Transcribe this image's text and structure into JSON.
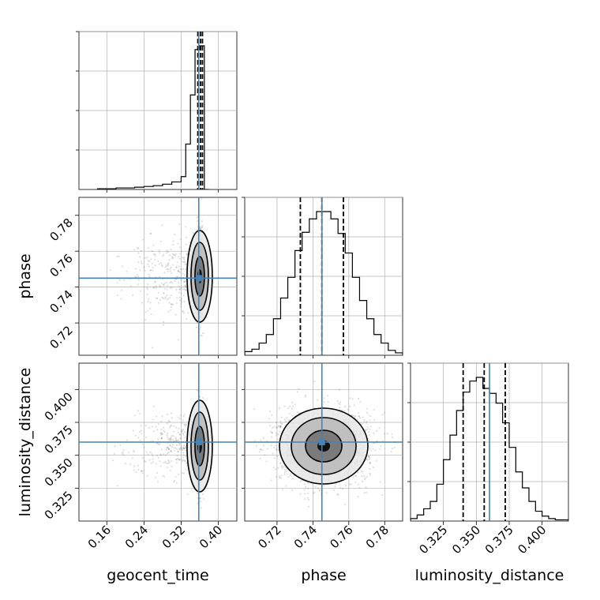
{
  "colors": {
    "truth": "#4682b4",
    "grid": "#b0b0b0",
    "line": "#000000",
    "point": "#000000"
  },
  "chart_data": {
    "type": "corner",
    "parameters": [
      "geocent_time",
      "phase",
      "luminosity_distance"
    ],
    "axis_labels": {
      "x": [
        "geocent_time",
        "phase",
        "luminosity_distance"
      ],
      "y": [
        "phase",
        "luminosity_distance"
      ]
    },
    "ranges": {
      "geocent_time": [
        0.1,
        0.44
      ],
      "phase": [
        0.702,
        0.79
      ],
      "luminosity_distance": [
        0.3,
        0.42
      ]
    },
    "ticks": {
      "geocent_time": {
        "values": [
          0.16,
          0.24,
          0.32,
          0.4
        ],
        "labels": [
          "0.16",
          "0.24",
          "0.32",
          "0.40"
        ]
      },
      "phase": {
        "values": [
          0.72,
          0.74,
          0.76,
          0.78
        ],
        "labels": [
          "0.72",
          "0.74",
          "0.76",
          "0.78"
        ]
      },
      "luminosity_distance": {
        "values": [
          0.325,
          0.35,
          0.375,
          0.4
        ],
        "labels": [
          "0.325",
          "0.350",
          "0.375",
          "0.400"
        ]
      }
    },
    "truths": {
      "geocent_time": 0.358,
      "phase": 0.745,
      "luminosity_distance": 0.36
    },
    "quantiles": {
      "geocent_time": [
        0.356,
        0.362,
        0.366
      ],
      "phase": [
        0.733,
        0.745,
        0.757
      ],
      "luminosity_distance": [
        0.34,
        0.356,
        0.372
      ]
    },
    "histograms": {
      "geocent_time": {
        "edges": [
          0.14,
          0.16,
          0.18,
          0.2,
          0.22,
          0.24,
          0.26,
          0.28,
          0.3,
          0.32,
          0.33,
          0.34,
          0.35,
          0.36,
          0.37,
          0.38
        ],
        "counts": [
          1,
          1,
          2,
          2,
          3,
          4,
          5,
          7,
          10,
          17,
          60,
          125,
          185,
          190,
          0
        ]
      },
      "phase": {
        "edges": [
          0.702,
          0.706,
          0.71,
          0.714,
          0.718,
          0.722,
          0.726,
          0.73,
          0.734,
          0.738,
          0.742,
          0.746,
          0.75,
          0.754,
          0.758,
          0.762,
          0.766,
          0.77,
          0.774,
          0.778,
          0.782,
          0.786,
          0.79
        ],
        "counts": [
          3,
          5,
          10,
          17,
          30,
          47,
          64,
          86,
          101,
          112,
          118,
          118,
          112,
          100,
          84,
          64,
          45,
          30,
          17,
          10,
          4,
          2
        ]
      },
      "luminosity_distance": {
        "edges": [
          0.3,
          0.305,
          0.31,
          0.315,
          0.32,
          0.325,
          0.33,
          0.335,
          0.34,
          0.345,
          0.35,
          0.355,
          0.36,
          0.365,
          0.37,
          0.375,
          0.38,
          0.385,
          0.39,
          0.395,
          0.4,
          0.405,
          0.41,
          0.42
        ],
        "counts": [
          2,
          5,
          10,
          16,
          30,
          50,
          70,
          90,
          105,
          114,
          117,
          108,
          104,
          96,
          80,
          60,
          40,
          27,
          16,
          8,
          4,
          2,
          1
        ]
      }
    },
    "posterior_peaks": {
      "geocent_time": 0.36,
      "phase": 0.746,
      "luminosity_distance": 0.357
    },
    "grid": true,
    "legend": null
  }
}
